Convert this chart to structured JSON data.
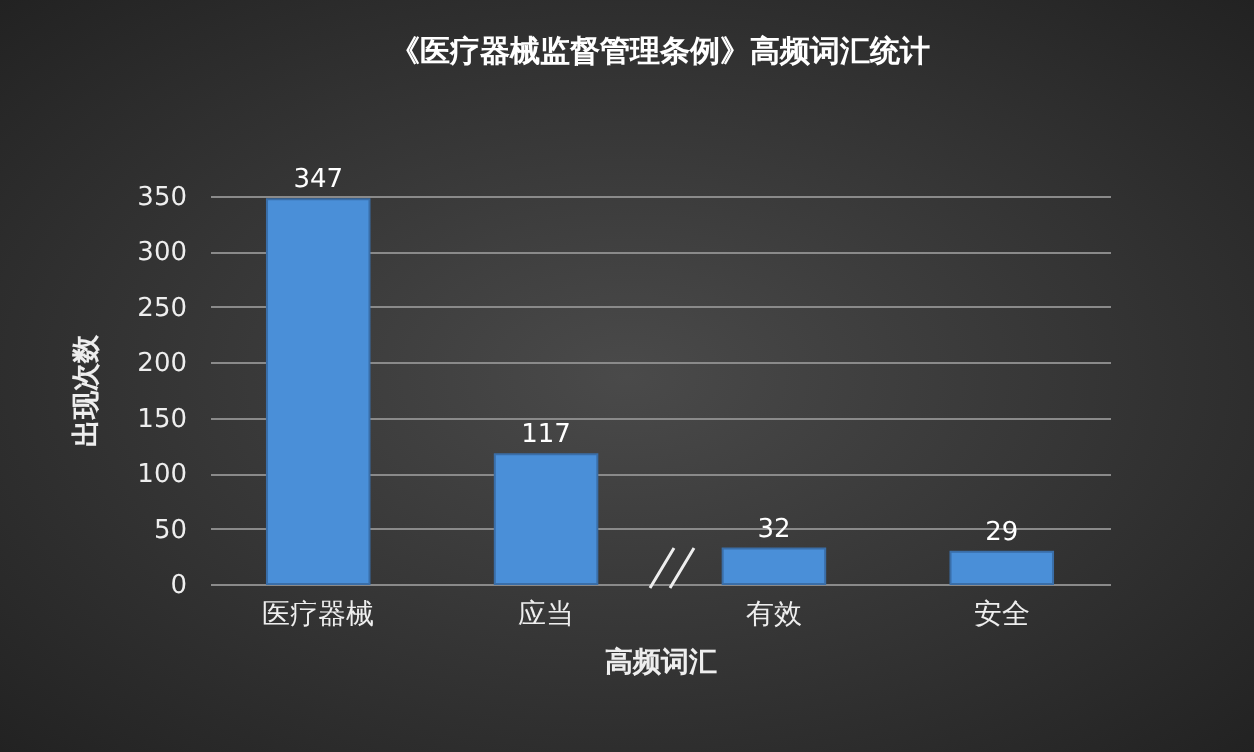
{
  "chart_data": {
    "type": "bar",
    "title": "《医疗器械监督管理条例》高频词汇统计",
    "xlabel": "高频词汇",
    "ylabel": "出现次数",
    "categories": [
      "医疗器械",
      "应当",
      "有效",
      "安全"
    ],
    "values": [
      347,
      117,
      32,
      29
    ],
    "color": "#4a8fd8",
    "ylim": [
      0,
      350
    ],
    "yticks": [
      0,
      50,
      100,
      150,
      200,
      250,
      300,
      350
    ],
    "grid": "y",
    "data_labels": true
  }
}
